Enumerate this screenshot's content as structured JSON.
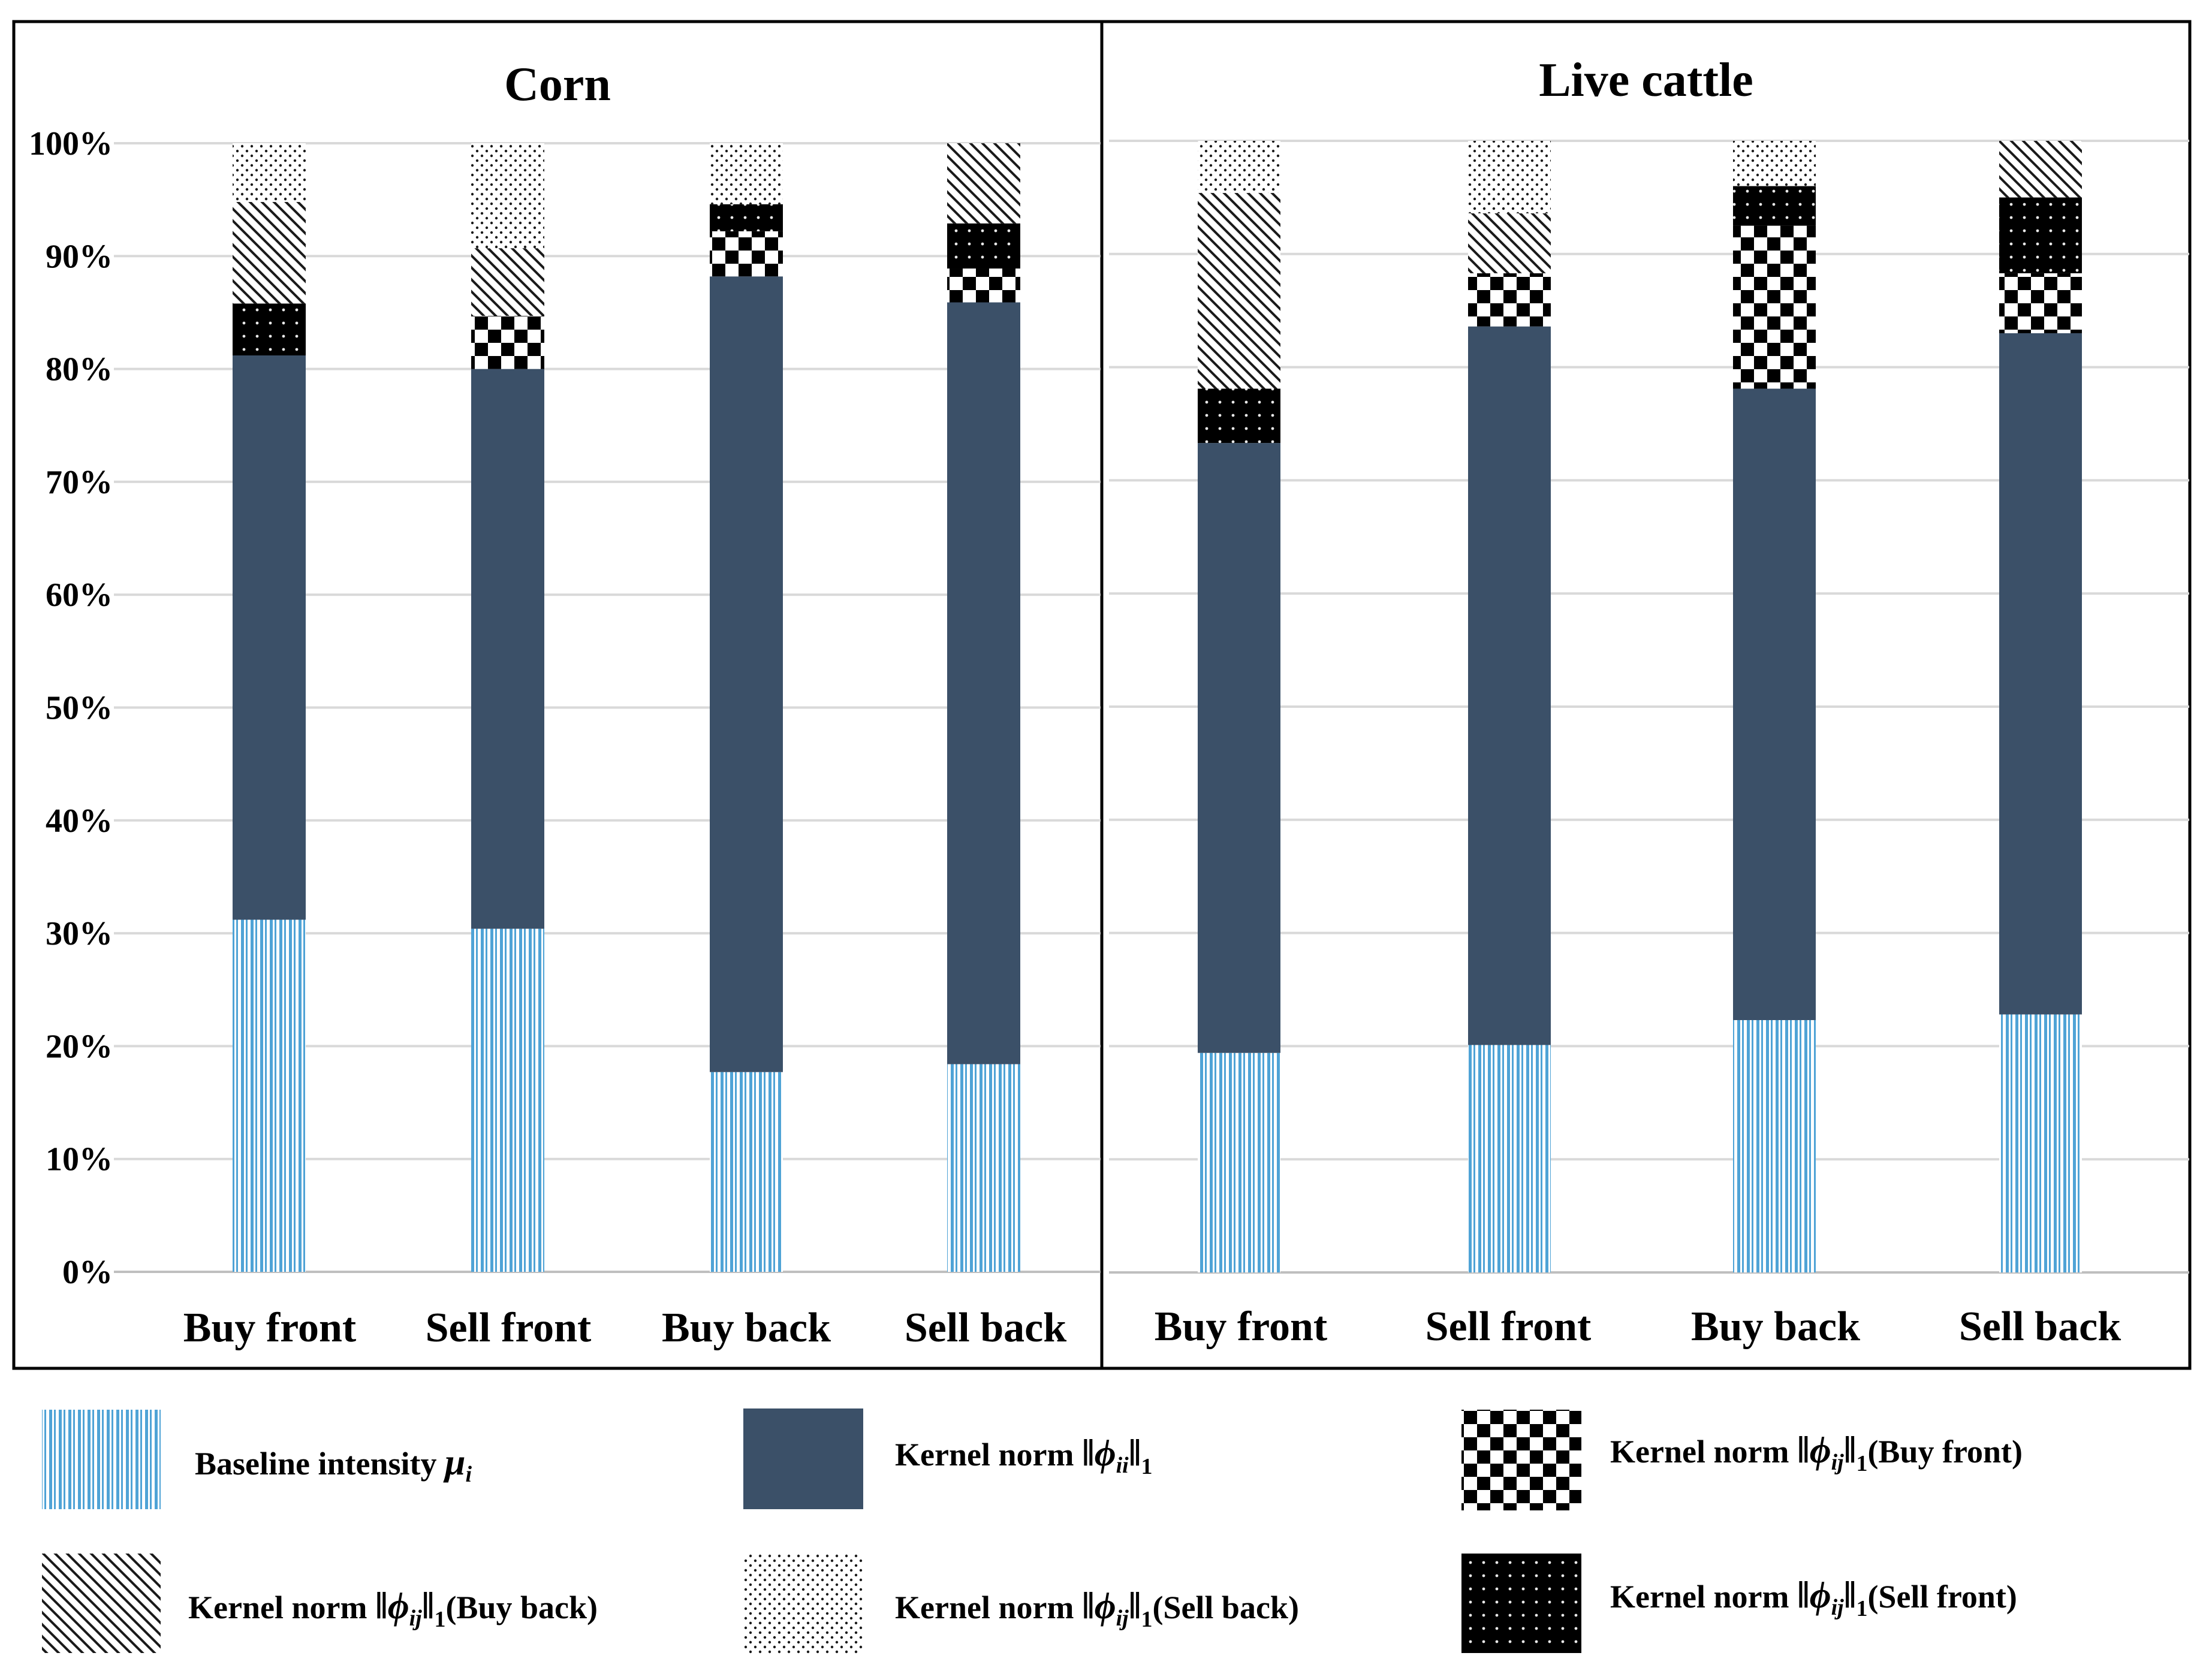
{
  "chart_data": [
    {
      "type": "bar",
      "stacked": "percent",
      "title": "Corn",
      "categories": [
        "Buy front",
        "Sell front",
        "Buy back",
        "Sell back"
      ],
      "y_ticks": [
        "0%",
        "10%",
        "20%",
        "30%",
        "40%",
        "50%",
        "60%",
        "70%",
        "80%",
        "90%",
        "100%"
      ],
      "ylim": [
        0,
        100
      ],
      "series": [
        {
          "name": "baseline",
          "values": [
            31.2,
            30.4,
            17.7,
            18.4
          ]
        },
        {
          "name": "self",
          "values": [
            50.0,
            49.6,
            70.5,
            67.5
          ]
        },
        {
          "name": "buyfront",
          "values": [
            0,
            4.7,
            4.0,
            3.0
          ]
        },
        {
          "name": "sellfront",
          "values": [
            4.6,
            0,
            2.4,
            4.0
          ]
        },
        {
          "name": "buyback",
          "values": [
            9.0,
            6.0,
            0,
            7.1
          ]
        },
        {
          "name": "sellback",
          "values": [
            5.2,
            9.3,
            5.4,
            0
          ]
        }
      ]
    },
    {
      "type": "bar",
      "stacked": "percent",
      "title": "Live cattle",
      "categories": [
        "Buy front",
        "Sell front",
        "Buy back",
        "Sell back"
      ],
      "y_ticks": [],
      "ylim": [
        0,
        100
      ],
      "series": [
        {
          "name": "baseline",
          "values": [
            19.4,
            20.1,
            22.3,
            22.8
          ]
        },
        {
          "name": "self",
          "values": [
            53.9,
            63.5,
            55.8,
            60.2
          ]
        },
        {
          "name": "buyfront",
          "values": [
            0,
            4.7,
            14.4,
            5.3
          ]
        },
        {
          "name": "sellfront",
          "values": [
            4.8,
            0,
            3.5,
            6.7
          ]
        },
        {
          "name": "buyback",
          "values": [
            17.3,
            5.3,
            0,
            5.0
          ]
        },
        {
          "name": "sellback",
          "values": [
            4.6,
            6.4,
            4.0,
            0
          ]
        }
      ]
    }
  ],
  "legend": [
    {
      "series": "baseline",
      "label": "Baseline intensity",
      "math": "μ",
      "sub": "i",
      "norm": false
    },
    {
      "series": "self",
      "label": "Kernel norm",
      "math": "ϕ",
      "sub": "ii",
      "norm": true,
      "suffix": ""
    },
    {
      "series": "buyfront",
      "label": "Kernel norm",
      "math": "ϕ",
      "sub": "ij",
      "norm": true,
      "suffix": "(Buy front)"
    },
    {
      "series": "buyback",
      "label": "Kernel norm",
      "math": "ϕ",
      "sub": "ij",
      "norm": true,
      "suffix": "(Buy back)"
    },
    {
      "series": "sellback",
      "label": "Kernel norm",
      "math": "ϕ",
      "sub": "ij",
      "norm": true,
      "suffix": "(Sell back)"
    },
    {
      "series": "sellfront",
      "label": "Kernel norm",
      "math": "ϕ",
      "sub": "ij",
      "norm": true,
      "suffix": "(Sell front)"
    }
  ],
  "colors": {
    "baseline": "#4fa3d6",
    "self": "#3b5068",
    "pattern_ink": "#000000"
  }
}
